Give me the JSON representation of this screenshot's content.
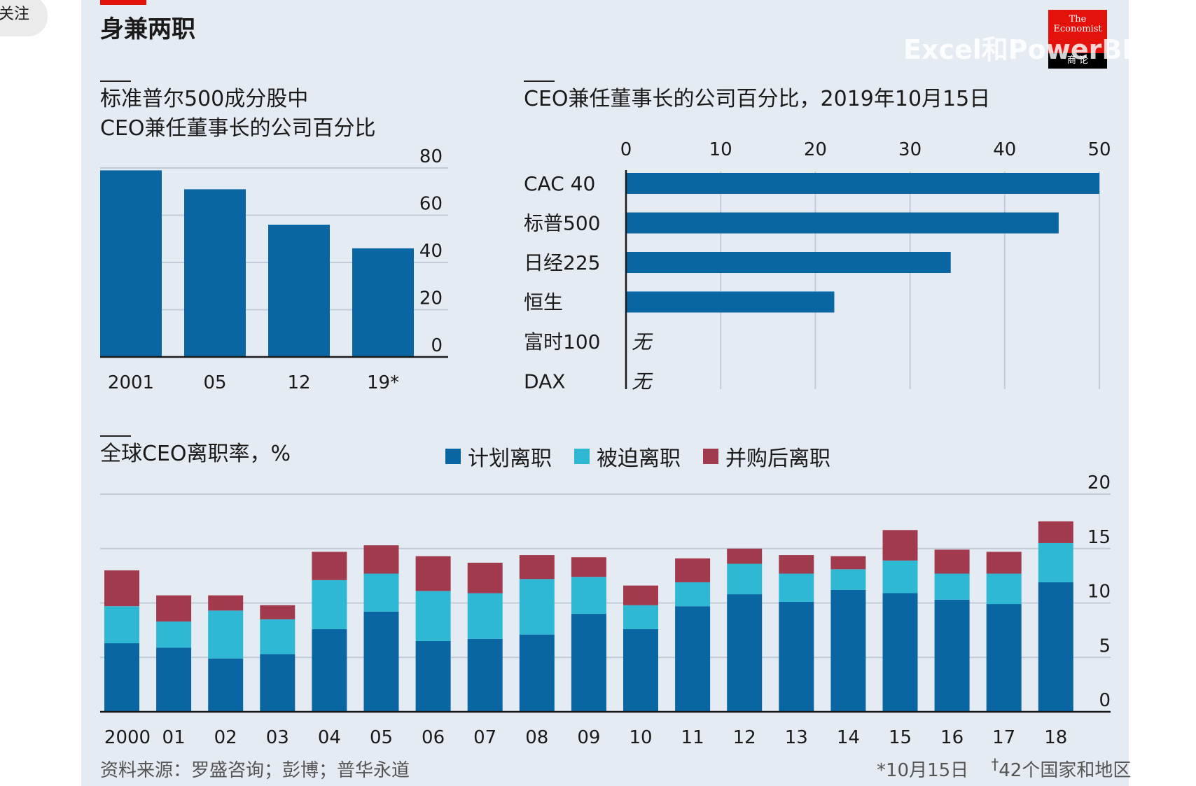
{
  "corner_chip": "关注",
  "header": {
    "title": "身兼两职",
    "watermark": "Excel和PowerBI聚焦",
    "logo_line1": "The",
    "logo_line2": "Economist",
    "logo_bottom": "商 论"
  },
  "colors": {
    "planned": "#0a66a2",
    "forced": "#2fb8d4",
    "merger": "#a23a4e",
    "bar": "#0a66a2",
    "accent": "#e3120b",
    "panel": "#e5ebf2"
  },
  "chart_data": [
    {
      "type": "bar",
      "title_line1": "标准普尔500成分股中",
      "title_line2": "CEO兼任董事长的公司百分比",
      "categories": [
        "2001",
        "05",
        "12",
        "19*"
      ],
      "values": [
        79,
        71,
        56,
        46
      ],
      "ylim": [
        0,
        80
      ],
      "yticks": [
        "0",
        "20",
        "40",
        "60",
        "80"
      ],
      "grid": true
    },
    {
      "type": "bar",
      "orientation": "horizontal",
      "title": "CEO兼任董事长的公司百分比，2019年10月15日",
      "categories": [
        "CAC 40",
        "标普500",
        "日经225",
        "恒生",
        "富时100",
        "DAX"
      ],
      "values": [
        50,
        45.7,
        34.3,
        22,
        0,
        0
      ],
      "value_labels": [
        "",
        "",
        "",
        "",
        "无",
        "无"
      ],
      "xlim": [
        0,
        50
      ],
      "xticks": [
        "0",
        "10",
        "20",
        "30",
        "40",
        "50"
      ],
      "grid": true
    },
    {
      "type": "bar",
      "stacked": true,
      "title": "全球CEO离职率，%",
      "categories": [
        "2000",
        "01",
        "02",
        "03",
        "04",
        "05",
        "06",
        "07",
        "08",
        "09",
        "10",
        "11",
        "12",
        "13",
        "14",
        "15",
        "16",
        "17",
        "18"
      ],
      "series": [
        {
          "name": "计划离职",
          "values": [
            6.3,
            5.9,
            4.9,
            5.3,
            7.6,
            9.2,
            6.5,
            6.7,
            7.1,
            9.0,
            7.6,
            9.7,
            10.8,
            10.1,
            11.2,
            10.9,
            10.3,
            9.9,
            11.9
          ]
        },
        {
          "name": "被迫离职",
          "values": [
            3.4,
            2.4,
            4.4,
            3.2,
            4.5,
            3.5,
            4.6,
            4.2,
            5.1,
            3.4,
            2.2,
            2.2,
            2.8,
            2.6,
            1.9,
            3.0,
            2.4,
            2.8,
            3.6
          ]
        },
        {
          "name": "并购后离职",
          "values": [
            3.3,
            2.4,
            1.4,
            1.3,
            2.6,
            2.6,
            3.2,
            2.8,
            2.2,
            1.8,
            1.8,
            2.2,
            1.4,
            1.7,
            1.2,
            2.8,
            2.2,
            2.0,
            2.0
          ]
        }
      ],
      "ylim": [
        0,
        20
      ],
      "yticks": [
        "0",
        "5",
        "10",
        "15",
        "20"
      ],
      "grid": true,
      "legend": "top"
    }
  ],
  "footer": {
    "source": "资料来源：罗盛咨询；彭博；普华永道",
    "note1": "*10月15日",
    "note2_mark": "†",
    "note2": "42个国家和地区"
  }
}
